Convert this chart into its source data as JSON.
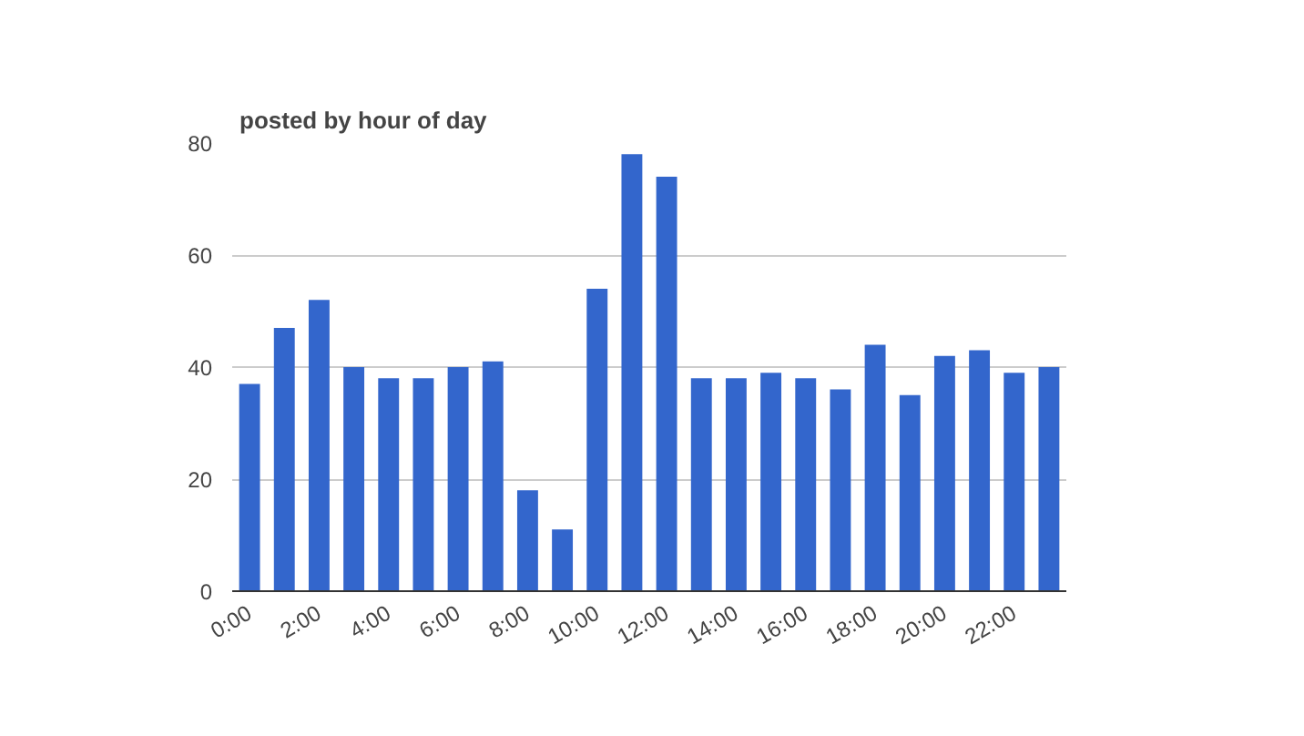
{
  "chart_data": {
    "type": "bar",
    "title": "posted by hour of day",
    "categories": [
      "0:00",
      null,
      "2:00",
      null,
      "4:00",
      null,
      "6:00",
      null,
      "8:00",
      null,
      "10:00",
      null,
      "12:00",
      null,
      "14:00",
      null,
      "16:00",
      null,
      "18:00",
      null,
      "20:00",
      null,
      "22:00",
      null
    ],
    "values": [
      37,
      47,
      52,
      40,
      38,
      38,
      40,
      41,
      18,
      11,
      54,
      78,
      74,
      38,
      38,
      39,
      38,
      36,
      44,
      35,
      42,
      43,
      39,
      40
    ],
    "color": "#3366cc",
    "ylim": [
      0,
      80
    ],
    "yticks": [
      0,
      20,
      40,
      60,
      80
    ],
    "grid": "y"
  }
}
